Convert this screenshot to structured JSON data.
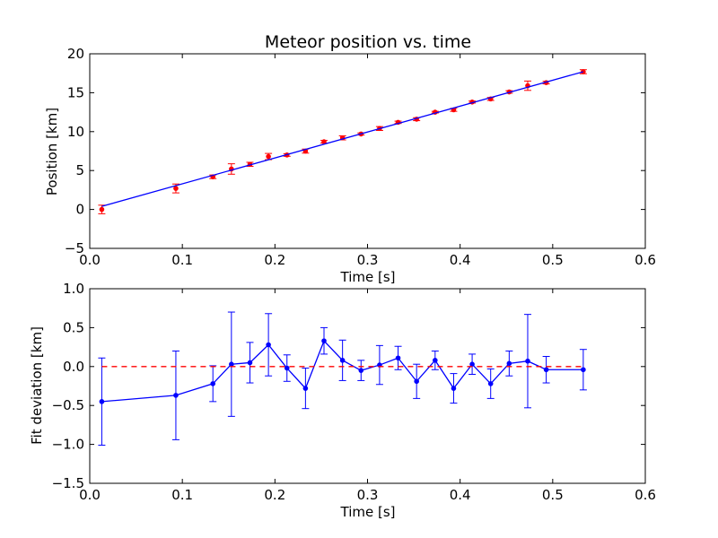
{
  "chart_data": [
    {
      "type": "scatter",
      "title": "Meteor position vs. time",
      "xlabel": "Time [s]",
      "ylabel": "Position [km]",
      "xlim": [
        0.0,
        0.6
      ],
      "ylim": [
        -5,
        20
      ],
      "xticks": [
        "0.0",
        "0.1",
        "0.2",
        "0.3",
        "0.4",
        "0.5",
        "0.6"
      ],
      "yticks": [
        "−5",
        "0",
        "5",
        "10",
        "15",
        "20"
      ],
      "grid": false,
      "colors": {
        "points": "#ff0000",
        "errorbars": "#ff0000",
        "fit": "#0000ff"
      },
      "series": [
        {
          "kind": "points_with_errorbars",
          "x": [
            0.013,
            0.093,
            0.133,
            0.153,
            0.173,
            0.193,
            0.213,
            0.233,
            0.253,
            0.273,
            0.293,
            0.313,
            0.333,
            0.353,
            0.373,
            0.393,
            0.413,
            0.433,
            0.453,
            0.473,
            0.493,
            0.533
          ],
          "y": [
            0.0,
            2.7,
            4.2,
            5.2,
            5.8,
            6.8,
            7.0,
            7.5,
            8.7,
            9.2,
            9.7,
            10.4,
            11.2,
            11.6,
            12.5,
            12.8,
            13.8,
            14.2,
            15.1,
            15.9,
            16.3,
            17.7
          ],
          "yerr": [
            0.55,
            0.57,
            0.23,
            0.67,
            0.26,
            0.4,
            0.17,
            0.26,
            0.17,
            0.26,
            0.13,
            0.25,
            0.15,
            0.19,
            0.11,
            0.19,
            0.13,
            0.19,
            0.16,
            0.6,
            0.17,
            0.26
          ]
        },
        {
          "kind": "fit_line",
          "x": [
            0.013,
            0.533
          ],
          "y": [
            0.4,
            17.7
          ]
        }
      ]
    },
    {
      "type": "line",
      "xlabel": "Time [s]",
      "ylabel": "Fit deviation [km]",
      "xlim": [
        0.0,
        0.6
      ],
      "ylim": [
        -1.5,
        1.0
      ],
      "xticks": [
        "0.0",
        "0.1",
        "0.2",
        "0.3",
        "0.4",
        "0.5",
        "0.6"
      ],
      "yticks": [
        "−1.5",
        "−1.0",
        "−0.5",
        "0.0",
        "0.5",
        "1.0"
      ],
      "grid": false,
      "colors": {
        "line": "#0000ff",
        "zero_line": "#ff0000"
      },
      "series": [
        {
          "kind": "points_with_errorbars",
          "x": [
            0.013,
            0.093,
            0.133,
            0.153,
            0.173,
            0.193,
            0.213,
            0.233,
            0.253,
            0.273,
            0.293,
            0.313,
            0.333,
            0.353,
            0.373,
            0.393,
            0.413,
            0.433,
            0.453,
            0.473,
            0.493,
            0.533
          ],
          "y": [
            -0.45,
            -0.37,
            -0.22,
            0.03,
            0.05,
            0.28,
            -0.02,
            -0.28,
            0.33,
            0.08,
            -0.05,
            0.02,
            0.11,
            -0.19,
            0.08,
            -0.28,
            0.03,
            -0.22,
            0.04,
            0.07,
            -0.04,
            -0.04
          ],
          "yerr": [
            0.56,
            0.57,
            0.23,
            0.67,
            0.26,
            0.4,
            0.17,
            0.26,
            0.17,
            0.26,
            0.13,
            0.25,
            0.15,
            0.22,
            0.12,
            0.19,
            0.13,
            0.19,
            0.16,
            0.6,
            0.17,
            0.26
          ]
        },
        {
          "kind": "reference_line",
          "x": [
            0.013,
            0.533
          ],
          "y": [
            0.0,
            0.0
          ]
        }
      ]
    }
  ]
}
